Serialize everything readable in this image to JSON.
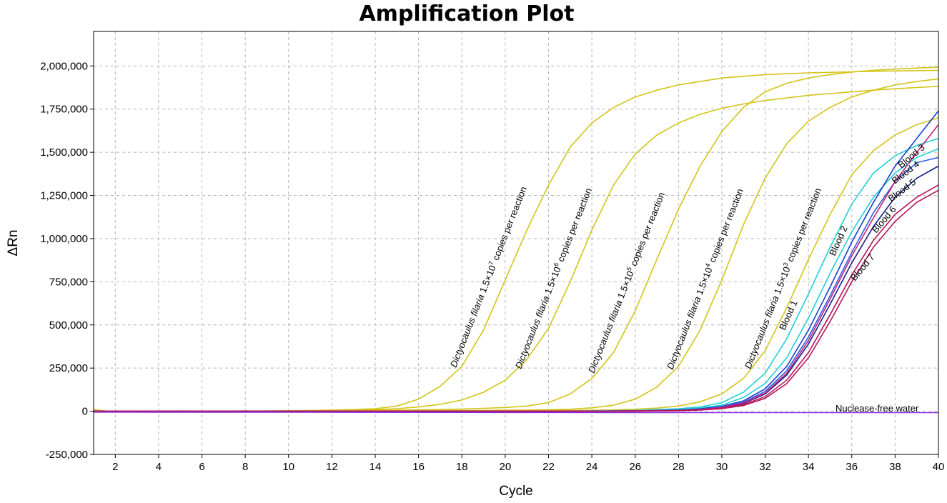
{
  "chart_data": {
    "type": "line",
    "title": "Amplification Plot",
    "xlabel": "Cycle",
    "ylabel": "ΔRn",
    "xlim": [
      1,
      40
    ],
    "ylim": [
      -250000,
      2200000
    ],
    "x_ticks": [
      2,
      4,
      6,
      8,
      10,
      12,
      14,
      16,
      18,
      20,
      22,
      24,
      26,
      28,
      30,
      32,
      34,
      36,
      38,
      40
    ],
    "x_tick_labels": [
      "2",
      "4",
      "6",
      "8",
      "10",
      "12",
      "14",
      "16",
      "18",
      "20",
      "22",
      "24",
      "26",
      "28",
      "30",
      "32",
      "34",
      "36",
      "38",
      "40"
    ],
    "y_ticks": [
      -250000,
      0,
      250000,
      500000,
      750000,
      1000000,
      1250000,
      1500000,
      1750000,
      2000000
    ],
    "y_tick_labels": [
      "-250,000",
      "0",
      "250,000",
      "500,000",
      "750,000",
      "1,000,000",
      "1,250,000",
      "1,500,000",
      "1,750,000",
      "2,000,000"
    ],
    "grid": true,
    "colors": {
      "standard": "#d4c418",
      "cyan": "#1ecfd6",
      "blue": "#1a3ad0",
      "navy": "#13208f",
      "royal": "#2f5ce0",
      "magenta": "#c8207a",
      "crimson": "#b5145a",
      "purple": "#8a2be2"
    },
    "series": [
      {
        "color": "standard",
        "x": [
          1,
          2,
          3,
          4,
          5,
          6,
          7,
          8,
          9,
          10,
          11,
          12,
          13,
          14,
          15,
          16,
          17,
          18,
          19,
          20,
          21,
          22,
          23,
          24,
          25,
          26,
          27,
          28,
          29,
          30,
          31,
          32,
          33,
          34,
          35,
          36,
          37,
          38,
          39,
          40
        ],
        "y": [
          10000,
          -5000,
          0,
          -3000,
          2000,
          1000,
          0,
          2000,
          1000,
          3000,
          4000,
          7000,
          10000,
          15000,
          30000,
          70000,
          145000,
          260000,
          470000,
          760000,
          1050000,
          1310000,
          1530000,
          1670000,
          1760000,
          1820000,
          1860000,
          1890000,
          1910000,
          1930000,
          1940000,
          1950000,
          1955000,
          1960000,
          1963000,
          1966000,
          1969000,
          1971000,
          1973000,
          1975000
        ]
      },
      {
        "color": "standard",
        "x": [
          1,
          2,
          3,
          4,
          5,
          6,
          7,
          8,
          9,
          10,
          11,
          12,
          13,
          14,
          15,
          16,
          17,
          18,
          19,
          20,
          21,
          22,
          23,
          24,
          25,
          26,
          27,
          28,
          29,
          30,
          31,
          32,
          33,
          34,
          35,
          36,
          37,
          38,
          39,
          40
        ],
        "y": [
          5000,
          -3000,
          0,
          -2000,
          1000,
          0,
          1000,
          1000,
          2000,
          2000,
          3000,
          5000,
          7000,
          10000,
          15000,
          25000,
          40000,
          65000,
          110000,
          180000,
          300000,
          480000,
          750000,
          1050000,
          1310000,
          1490000,
          1600000,
          1670000,
          1720000,
          1755000,
          1780000,
          1800000,
          1815000,
          1830000,
          1840000,
          1850000,
          1860000,
          1868000,
          1875000,
          1882000
        ]
      },
      {
        "color": "standard",
        "x": [
          1,
          2,
          3,
          4,
          5,
          6,
          7,
          8,
          9,
          10,
          11,
          12,
          13,
          14,
          15,
          16,
          17,
          18,
          19,
          20,
          21,
          22,
          23,
          24,
          25,
          26,
          27,
          28,
          29,
          30,
          31,
          32,
          33,
          34,
          35,
          36,
          37,
          38,
          39,
          40
        ],
        "y": [
          3000,
          -2000,
          0,
          -1000,
          1000,
          0,
          1000,
          1000,
          1000,
          2000,
          2000,
          3000,
          4000,
          5000,
          6000,
          8000,
          10000,
          13000,
          17000,
          22000,
          30000,
          50000,
          100000,
          190000,
          340000,
          580000,
          880000,
          1170000,
          1420000,
          1620000,
          1760000,
          1850000,
          1900000,
          1930000,
          1950000,
          1965000,
          1975000,
          1982000,
          1988000,
          1993000
        ]
      },
      {
        "color": "standard",
        "x": [
          1,
          2,
          3,
          4,
          5,
          6,
          7,
          8,
          9,
          10,
          11,
          12,
          13,
          14,
          15,
          16,
          17,
          18,
          19,
          20,
          21,
          22,
          23,
          24,
          25,
          26,
          27,
          28,
          29,
          30,
          31,
          32,
          33,
          34,
          35,
          36,
          37,
          38,
          39,
          40
        ],
        "y": [
          2000,
          -2000,
          0,
          -1000,
          1000,
          0,
          1000,
          0,
          1000,
          1000,
          1000,
          2000,
          2000,
          3000,
          3000,
          4000,
          4000,
          5000,
          5000,
          6000,
          7000,
          9000,
          12000,
          20000,
          35000,
          70000,
          140000,
          260000,
          470000,
          760000,
          1080000,
          1350000,
          1550000,
          1680000,
          1760000,
          1820000,
          1860000,
          1890000,
          1910000,
          1925000
        ]
      },
      {
        "color": "standard",
        "x": [
          1,
          2,
          3,
          4,
          5,
          6,
          7,
          8,
          9,
          10,
          11,
          12,
          13,
          14,
          15,
          16,
          17,
          18,
          19,
          20,
          21,
          22,
          23,
          24,
          25,
          26,
          27,
          28,
          29,
          30,
          31,
          32,
          33,
          34,
          35,
          36,
          37,
          38,
          39,
          40
        ],
        "y": [
          1000,
          -1000,
          0,
          -1000,
          0,
          0,
          0,
          0,
          0,
          1000,
          1000,
          1000,
          1000,
          1000,
          2000,
          2000,
          2000,
          2000,
          3000,
          3000,
          3000,
          4000,
          5000,
          6000,
          8000,
          12000,
          18000,
          30000,
          55000,
          100000,
          190000,
          350000,
          600000,
          880000,
          1140000,
          1370000,
          1510000,
          1600000,
          1660000,
          1700000
        ]
      },
      {
        "color": "cyan",
        "x": [
          1,
          4,
          8,
          12,
          16,
          20,
          24,
          26,
          28,
          29,
          30,
          31,
          32,
          33,
          34,
          35,
          36,
          37,
          38,
          39,
          40
        ],
        "y": [
          0,
          0,
          0,
          0,
          0,
          0,
          2000,
          5000,
          15000,
          25000,
          50000,
          110000,
          220000,
          420000,
          680000,
          950000,
          1200000,
          1380000,
          1480000,
          1540000,
          1580000
        ]
      },
      {
        "color": "cyan",
        "x": [
          1,
          4,
          8,
          12,
          16,
          20,
          24,
          26,
          28,
          29,
          30,
          31,
          32,
          33,
          34,
          35,
          36,
          37,
          38,
          39,
          40
        ],
        "y": [
          0,
          0,
          0,
          0,
          0,
          0,
          1000,
          3000,
          10000,
          18000,
          35000,
          80000,
          160000,
          310000,
          540000,
          800000,
          1040000,
          1240000,
          1380000,
          1470000,
          1520000
        ]
      },
      {
        "color": "blue",
        "x": [
          1,
          4,
          8,
          12,
          16,
          20,
          24,
          26,
          28,
          29,
          30,
          31,
          32,
          33,
          34,
          35,
          36,
          37,
          38,
          39,
          40
        ],
        "y": [
          0,
          0,
          0,
          0,
          0,
          0,
          1000,
          2000,
          7000,
          14000,
          28000,
          60000,
          130000,
          260000,
          470000,
          720000,
          980000,
          1210000,
          1420000,
          1580000,
          1740000
        ]
      },
      {
        "color": "royal",
        "x": [
          1,
          4,
          8,
          12,
          16,
          20,
          24,
          26,
          28,
          29,
          30,
          31,
          32,
          33,
          34,
          35,
          36,
          37,
          38,
          39,
          40
        ],
        "y": [
          0,
          0,
          0,
          0,
          0,
          0,
          1000,
          2000,
          6000,
          12000,
          24000,
          52000,
          115000,
          235000,
          430000,
          670000,
          920000,
          1150000,
          1330000,
          1440000,
          1470000
        ]
      },
      {
        "color": "navy",
        "x": [
          1,
          4,
          8,
          12,
          16,
          20,
          24,
          26,
          28,
          29,
          30,
          31,
          32,
          33,
          34,
          35,
          36,
          37,
          38,
          39,
          40
        ],
        "y": [
          0,
          0,
          0,
          0,
          0,
          0,
          1000,
          2000,
          5000,
          10000,
          20000,
          45000,
          100000,
          210000,
          390000,
          620000,
          860000,
          1070000,
          1240000,
          1350000,
          1420000
        ]
      },
      {
        "color": "magenta",
        "x": [
          1,
          4,
          8,
          12,
          16,
          20,
          24,
          26,
          28,
          29,
          30,
          31,
          32,
          33,
          34,
          35,
          36,
          37,
          38,
          39,
          40
        ],
        "y": [
          0,
          0,
          0,
          0,
          0,
          0,
          1000,
          2000,
          5000,
          10000,
          22000,
          48000,
          105000,
          220000,
          410000,
          650000,
          900000,
          1120000,
          1330000,
          1500000,
          1660000
        ]
      },
      {
        "color": "crimson",
        "x": [
          1,
          4,
          8,
          12,
          16,
          20,
          24,
          26,
          28,
          29,
          30,
          31,
          32,
          33,
          34,
          35,
          36,
          37,
          38,
          39,
          40
        ],
        "y": [
          0,
          0,
          0,
          0,
          0,
          0,
          1000,
          1000,
          4000,
          8000,
          17000,
          38000,
          85000,
          180000,
          340000,
          560000,
          790000,
          990000,
          1140000,
          1240000,
          1310000
        ]
      },
      {
        "color": "crimson",
        "x": [
          1,
          4,
          8,
          12,
          16,
          20,
          24,
          26,
          28,
          29,
          30,
          31,
          32,
          33,
          34,
          35,
          36,
          37,
          38,
          39,
          40
        ],
        "y": [
          0,
          0,
          0,
          0,
          0,
          0,
          0,
          1000,
          3000,
          7000,
          15000,
          33000,
          75000,
          160000,
          310000,
          520000,
          750000,
          950000,
          1100000,
          1210000,
          1280000
        ]
      },
      {
        "color": "purple",
        "x": [
          1,
          10,
          20,
          30,
          40
        ],
        "y": [
          -5000,
          -6000,
          -7000,
          -8000,
          -8000
        ]
      }
    ],
    "annotations": {
      "std7": {
        "species": "Dictyocaulus filaria",
        "conc": " 1.5×10",
        "exp": "7",
        "suffix": " copies per reaction"
      },
      "std6": {
        "species": "Dictyocaulus filaria",
        "conc": " 1.5×10",
        "exp": "6",
        "suffix": " copies per reaction"
      },
      "std5": {
        "species": "Dictyocaulus filaria",
        "conc": " 1.5×10",
        "exp": "5",
        "suffix": " copies per reaction"
      },
      "std4": {
        "species": "Dictyocaulus filaria",
        "conc": " 1.5×10",
        "exp": "4",
        "suffix": " copies per reaction"
      },
      "std3": {
        "species": "Dictyocaulus filaria",
        "conc": " 1.5×10",
        "exp": "3",
        "suffix": " copies per reaction"
      },
      "blood1": "Blood 1",
      "blood2": "Blood 2",
      "blood3": "Blood 3",
      "blood4": "Blood 4",
      "blood5": "Blood 5",
      "blood6": "Blood 6",
      "blood7": "Blood 7",
      "ntc": "Nuclease-free water"
    }
  }
}
